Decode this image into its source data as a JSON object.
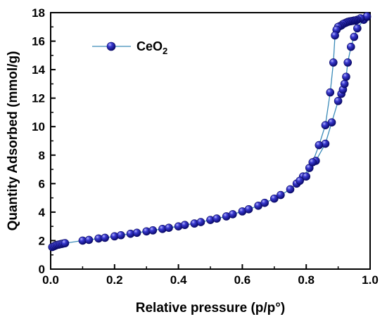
{
  "chart_data": {
    "type": "scatter",
    "xlabel": "Relative  pressure (p/p°)",
    "ylabel": "Quantity Adsorbed (mmol/g)",
    "xlim": [
      0,
      1.0
    ],
    "ylim": [
      0,
      18
    ],
    "x_ticks": [
      "0.0",
      "0.2",
      "0.4",
      "0.6",
      "0.8",
      "1.0"
    ],
    "y_ticks": [
      "0",
      "2",
      "4",
      "6",
      "8",
      "10",
      "12",
      "14",
      "16",
      "18"
    ],
    "grid": false,
    "legend_position": "top-left",
    "series": [
      {
        "name": "CeO2",
        "legend_main": "CeO",
        "legend_sub": "2",
        "color": "#1c1ca8",
        "line_color": "#3a8ab8",
        "adsorption": {
          "x": [
            0.005,
            0.01,
            0.015,
            0.02,
            0.025,
            0.03,
            0.035,
            0.04,
            0.045,
            0.1,
            0.12,
            0.15,
            0.17,
            0.2,
            0.22,
            0.25,
            0.27,
            0.3,
            0.32,
            0.35,
            0.37,
            0.4,
            0.42,
            0.45,
            0.47,
            0.5,
            0.52,
            0.55,
            0.57,
            0.6,
            0.62,
            0.65,
            0.67,
            0.7,
            0.72,
            0.75,
            0.77,
            0.79,
            0.81,
            0.83,
            0.86,
            0.88,
            0.9,
            0.91,
            0.915,
            0.92,
            0.925,
            0.93,
            0.94,
            0.95,
            0.96,
            0.98,
            0.99
          ],
          "y": [
            1.55,
            1.6,
            1.65,
            1.7,
            1.72,
            1.75,
            1.77,
            1.8,
            1.82,
            2.0,
            2.05,
            2.15,
            2.2,
            2.3,
            2.38,
            2.48,
            2.55,
            2.65,
            2.72,
            2.82,
            2.9,
            3.0,
            3.1,
            3.2,
            3.3,
            3.45,
            3.55,
            3.7,
            3.85,
            4.05,
            4.2,
            4.45,
            4.65,
            4.95,
            5.2,
            5.6,
            6.0,
            6.5,
            7.1,
            7.6,
            8.8,
            10.3,
            11.8,
            12.3,
            12.6,
            13.0,
            13.5,
            14.5,
            15.6,
            16.3,
            16.9,
            17.5,
            17.7
          ]
        },
        "desorption": {
          "x": [
            0.99,
            0.97,
            0.96,
            0.955,
            0.95,
            0.945,
            0.94,
            0.935,
            0.93,
            0.925,
            0.92,
            0.915,
            0.91,
            0.905,
            0.9,
            0.895,
            0.89,
            0.885,
            0.875,
            0.86,
            0.84,
            0.82,
            0.8,
            0.78
          ],
          "y": [
            17.75,
            17.6,
            17.5,
            17.45,
            17.45,
            17.42,
            17.4,
            17.38,
            17.35,
            17.3,
            17.25,
            17.2,
            17.1,
            17.05,
            17.0,
            16.8,
            16.4,
            14.5,
            12.4,
            10.1,
            8.7,
            7.5,
            6.5,
            6.2
          ]
        }
      }
    ]
  }
}
